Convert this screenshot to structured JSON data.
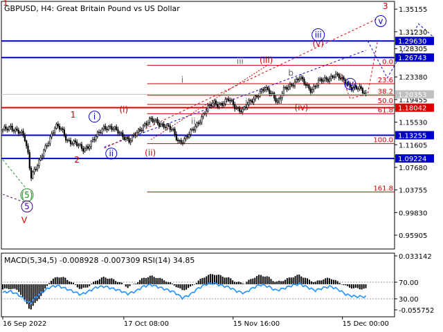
{
  "chart_data": {
    "type": "candlestick",
    "symbol": "GBPUSD",
    "timeframe": "H4",
    "description": "Great Britain Pound vs US Dollar",
    "current_price": "1.20353",
    "ylim": [
      0.935,
      1.365
    ],
    "price_ticks": [
      "1.35155",
      "1.31230",
      "1.28305",
      "1.23380",
      "1.19455",
      "1.15530",
      "1.11605",
      "1.07680",
      "1.03755",
      "0.99830",
      "0.95905"
    ],
    "x_labels": [
      {
        "label": "16 Sep 2022",
        "t": 0
      },
      {
        "label": "17 Oct 08:00",
        "t": 0.31
      },
      {
        "label": "15 Nov 16:00",
        "t": 0.59
      },
      {
        "label": "15 Dec 00:00",
        "t": 0.87
      }
    ],
    "price_path": [
      [
        0.0,
        1.14
      ],
      [
        0.02,
        1.148
      ],
      [
        0.04,
        1.138
      ],
      [
        0.055,
        1.13
      ],
      [
        0.065,
        1.1
      ],
      [
        0.072,
        1.062
      ],
      [
        0.08,
        1.072
      ],
      [
        0.092,
        1.082
      ],
      [
        0.105,
        1.105
      ],
      [
        0.12,
        1.128
      ],
      [
        0.135,
        1.148
      ],
      [
        0.15,
        1.142
      ],
      [
        0.165,
        1.125
      ],
      [
        0.185,
        1.118
      ],
      [
        0.205,
        1.108
      ],
      [
        0.22,
        1.115
      ],
      [
        0.24,
        1.13
      ],
      [
        0.26,
        1.148
      ],
      [
        0.275,
        1.146
      ],
      [
        0.29,
        1.14
      ],
      [
        0.31,
        1.132
      ],
      [
        0.325,
        1.122
      ],
      [
        0.34,
        1.133
      ],
      [
        0.36,
        1.15
      ],
      [
        0.375,
        1.158
      ],
      [
        0.395,
        1.155
      ],
      [
        0.415,
        1.15
      ],
      [
        0.435,
        1.14
      ],
      [
        0.45,
        1.122
      ],
      [
        0.465,
        1.125
      ],
      [
        0.48,
        1.135
      ],
      [
        0.495,
        1.15
      ],
      [
        0.51,
        1.165
      ],
      [
        0.525,
        1.178
      ],
      [
        0.54,
        1.19
      ],
      [
        0.56,
        1.186
      ],
      [
        0.58,
        1.194
      ],
      [
        0.6,
        1.18
      ],
      [
        0.615,
        1.174
      ],
      [
        0.63,
        1.188
      ],
      [
        0.65,
        1.202
      ],
      [
        0.67,
        1.212
      ],
      [
        0.69,
        1.206
      ],
      [
        0.705,
        1.19
      ],
      [
        0.72,
        1.21
      ],
      [
        0.74,
        1.222
      ],
      [
        0.76,
        1.232
      ],
      [
        0.775,
        1.22
      ],
      [
        0.79,
        1.212
      ],
      [
        0.81,
        1.225
      ],
      [
        0.83,
        1.23
      ],
      [
        0.85,
        1.238
      ],
      [
        0.865,
        1.23
      ],
      [
        0.88,
        1.225
      ],
      [
        0.895,
        1.215
      ],
      [
        0.915,
        1.212
      ],
      [
        0.93,
        1.205
      ]
    ],
    "horizontal_lines": [
      {
        "price": 1.2963,
        "label": "1.29630",
        "color": "#0000cc"
      },
      {
        "price": 1.26743,
        "label": "1.26743",
        "color": "#0000cc"
      },
      {
        "price": 1.18042,
        "label": "1.18042",
        "color": "#dd0000"
      },
      {
        "price": 1.13255,
        "label": "1.13255",
        "color": "#0000cc"
      },
      {
        "price": 1.09224,
        "label": "1.09224",
        "color": "#0000cc"
      }
    ],
    "fibonacci": {
      "color": "#cc0000",
      "levels": [
        {
          "label": "0.0",
          "price": 1.254
        },
        {
          "label": "23.6",
          "price": 1.222
        },
        {
          "label": "38.2",
          "price": 1.202
        },
        {
          "label": "50.0",
          "price": 1.186
        },
        {
          "label": "61.8",
          "price": 1.17
        },
        {
          "label": "100.0",
          "price": 1.118
        },
        {
          "label": "161.8",
          "price": 1.034
        }
      ]
    },
    "wave_labels": [
      {
        "text": "1",
        "color": "#cc0000",
        "circle": false,
        "t": -0.01,
        "price": 1.358
      },
      {
        "text": "1",
        "color": "#cc0000",
        "circle": false,
        "t": 0.18,
        "price": 1.163
      },
      {
        "text": "2",
        "color": "#cc0000",
        "circle": false,
        "t": 0.19,
        "price": 1.085
      },
      {
        "text": "3",
        "color": "#cc0000",
        "circle": false,
        "t": 0.98,
        "price": 1.352
      },
      {
        "text": "V",
        "color": "#cc0000",
        "circle": false,
        "t": 0.055,
        "price": 0.98
      },
      {
        "text": "(i)",
        "color": "#cc0000",
        "circle": false,
        "t": 0.31,
        "price": 1.172
      },
      {
        "text": "(ii)",
        "color": "#cc0000",
        "circle": false,
        "t": 0.378,
        "price": 1.097
      },
      {
        "text": "(iii)",
        "color": "#cc0000",
        "circle": false,
        "t": 0.675,
        "price": 1.258
      },
      {
        "text": "(iv)",
        "color": "#cc0000",
        "circle": false,
        "t": 0.765,
        "price": 1.176
      },
      {
        "text": "(v)",
        "color": "#cc0000",
        "circle": false,
        "t": 0.808,
        "price": 1.287
      },
      {
        "text": "i",
        "color": "#0000cc",
        "circle": true,
        "t": 0.235,
        "price": 1.16
      },
      {
        "text": "ii",
        "color": "#0000cc",
        "circle": true,
        "t": 0.278,
        "price": 1.096
      },
      {
        "text": "iii",
        "color": "#0000cc",
        "circle": true,
        "t": 0.808,
        "price": 1.302
      },
      {
        "text": "iv",
        "color": "#0000cc",
        "circle": true,
        "t": 0.89,
        "price": 1.217
      },
      {
        "text": "v",
        "color": "#0000cc",
        "circle": true,
        "t": 0.968,
        "price": 1.326
      },
      {
        "text": "(5)",
        "color": "#228b22",
        "circle": true,
        "t": 0.062,
        "price": 1.024
      },
      {
        "text": "5",
        "color": "#4b0082",
        "circle": true,
        "t": 0.062,
        "price": 1.004
      },
      {
        "text": "i",
        "color": "#666666",
        "circle": false,
        "t": 0.46,
        "price": 1.224
      },
      {
        "text": "ii",
        "color": "#666666",
        "circle": false,
        "t": 0.488,
        "price": 1.152
      },
      {
        "text": "iii",
        "color": "#666666",
        "circle": false,
        "t": 0.608,
        "price": 1.256
      },
      {
        "text": "iv",
        "color": "#666666",
        "circle": false,
        "t": 0.63,
        "price": 1.186
      },
      {
        "text": "a",
        "color": "#666666",
        "circle": false,
        "t": 0.71,
        "price": 1.187
      },
      {
        "text": "b",
        "color": "#666666",
        "circle": false,
        "t": 0.738,
        "price": 1.236
      }
    ],
    "indicator": {
      "label": "MACD(5,34,5) -0.008928 -0.007309 RSI(14) 34.85",
      "macd_ticks": [
        "0.033142",
        "-0.055752"
      ],
      "rsi_ticks": [
        "70.00",
        "30.00"
      ],
      "ylim": [
        -0.06,
        0.036
      ],
      "macd_histogram": [
        [
          0.0,
          -0.01
        ],
        [
          0.02,
          -0.008
        ],
        [
          0.04,
          -0.012
        ],
        [
          0.06,
          -0.035
        ],
        [
          0.07,
          -0.05
        ],
        [
          0.08,
          -0.04
        ],
        [
          0.1,
          -0.02
        ],
        [
          0.12,
          0.005
        ],
        [
          0.14,
          0.015
        ],
        [
          0.16,
          0.012
        ],
        [
          0.18,
          0.002
        ],
        [
          0.2,
          -0.01
        ],
        [
          0.22,
          -0.004
        ],
        [
          0.24,
          0.008
        ],
        [
          0.26,
          0.014
        ],
        [
          0.28,
          0.01
        ],
        [
          0.3,
          0.004
        ],
        [
          0.32,
          -0.006
        ],
        [
          0.34,
          0.002
        ],
        [
          0.36,
          0.012
        ],
        [
          0.38,
          0.016
        ],
        [
          0.4,
          0.012
        ],
        [
          0.42,
          0.006
        ],
        [
          0.44,
          -0.002
        ],
        [
          0.46,
          -0.012
        ],
        [
          0.48,
          -0.006
        ],
        [
          0.5,
          0.006
        ],
        [
          0.52,
          0.016
        ],
        [
          0.54,
          0.02
        ],
        [
          0.56,
          0.016
        ],
        [
          0.58,
          0.012
        ],
        [
          0.6,
          0.004
        ],
        [
          0.62,
          0.002
        ],
        [
          0.64,
          0.012
        ],
        [
          0.66,
          0.018
        ],
        [
          0.68,
          0.014
        ],
        [
          0.7,
          0.004
        ],
        [
          0.72,
          0.008
        ],
        [
          0.74,
          0.014
        ],
        [
          0.76,
          0.018
        ],
        [
          0.78,
          0.01
        ],
        [
          0.8,
          0.004
        ],
        [
          0.82,
          0.01
        ],
        [
          0.84,
          0.012
        ],
        [
          0.86,
          0.004
        ],
        [
          0.88,
          -0.004
        ],
        [
          0.9,
          -0.008
        ],
        [
          0.93,
          -0.009
        ]
      ],
      "rsi": [
        [
          0.0,
          45
        ],
        [
          0.02,
          48
        ],
        [
          0.04,
          40
        ],
        [
          0.06,
          25
        ],
        [
          0.07,
          18
        ],
        [
          0.08,
          30
        ],
        [
          0.1,
          45
        ],
        [
          0.12,
          58
        ],
        [
          0.14,
          62
        ],
        [
          0.16,
          55
        ],
        [
          0.18,
          48
        ],
        [
          0.2,
          40
        ],
        [
          0.22,
          48
        ],
        [
          0.24,
          58
        ],
        [
          0.26,
          60
        ],
        [
          0.28,
          55
        ],
        [
          0.3,
          50
        ],
        [
          0.32,
          42
        ],
        [
          0.34,
          48
        ],
        [
          0.36,
          60
        ],
        [
          0.38,
          64
        ],
        [
          0.4,
          58
        ],
        [
          0.42,
          52
        ],
        [
          0.44,
          46
        ],
        [
          0.46,
          32
        ],
        [
          0.48,
          40
        ],
        [
          0.5,
          55
        ],
        [
          0.52,
          65
        ],
        [
          0.54,
          68
        ],
        [
          0.56,
          62
        ],
        [
          0.58,
          58
        ],
        [
          0.6,
          48
        ],
        [
          0.62,
          44
        ],
        [
          0.64,
          56
        ],
        [
          0.66,
          64
        ],
        [
          0.68,
          60
        ],
        [
          0.7,
          50
        ],
        [
          0.72,
          55
        ],
        [
          0.74,
          62
        ],
        [
          0.76,
          66
        ],
        [
          0.78,
          58
        ],
        [
          0.8,
          50
        ],
        [
          0.82,
          56
        ],
        [
          0.84,
          60
        ],
        [
          0.86,
          52
        ],
        [
          0.88,
          40
        ],
        [
          0.9,
          36
        ],
        [
          0.93,
          35
        ]
      ]
    }
  }
}
